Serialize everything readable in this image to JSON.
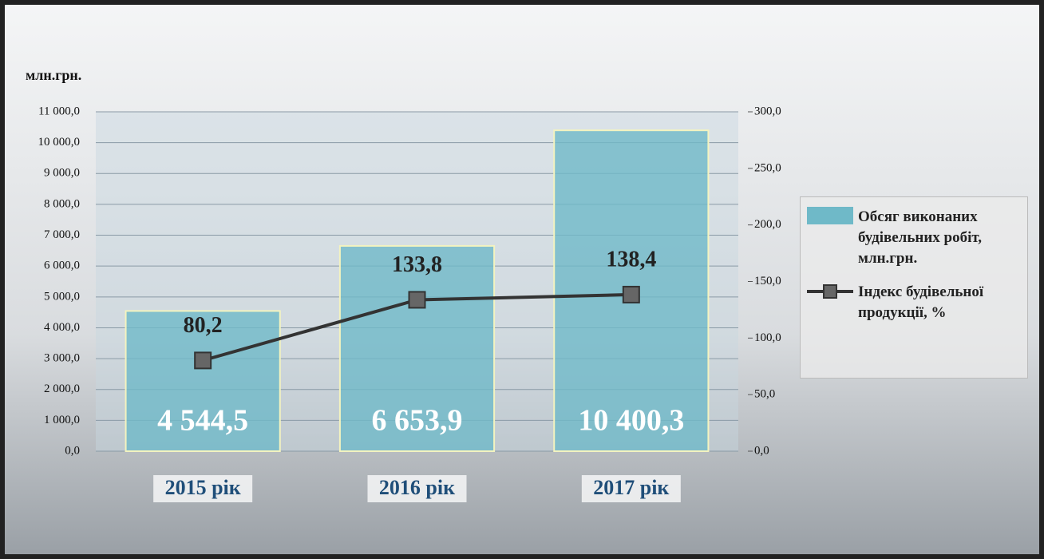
{
  "chart_data": {
    "type": "bar",
    "y_label": "млн.грн.",
    "categories": [
      "2015 рік",
      "2016 рік",
      "2017 рік"
    ],
    "series": [
      {
        "name": "Обсяг виконаних будівельних робіт, млн.грн.",
        "type": "bar",
        "color": "#6fb9c8",
        "values": [
          4544.5,
          6653.9,
          10400.3
        ],
        "value_labels": [
          "4 544,5",
          "6 653,9",
          "10 400,3"
        ]
      },
      {
        "name": "Індекс будівельної продукції, %",
        "type": "line",
        "axis": "y2",
        "color": "#333333",
        "values": [
          80.2,
          133.8,
          138.4
        ],
        "value_labels": [
          "80,2",
          "133,8",
          "138,4"
        ]
      }
    ],
    "ylim": [
      0,
      11000
    ],
    "yticks": [
      {
        "value": 0,
        "label": "0,0"
      },
      {
        "value": 1000,
        "label": "1 000,0"
      },
      {
        "value": 2000,
        "label": "2 000,0"
      },
      {
        "value": 3000,
        "label": "3 000,0"
      },
      {
        "value": 4000,
        "label": "4 000,0"
      },
      {
        "value": 5000,
        "label": "5 000,0"
      },
      {
        "value": 6000,
        "label": "6 000,0"
      },
      {
        "value": 7000,
        "label": "7 000,0"
      },
      {
        "value": 8000,
        "label": "8 000,0"
      },
      {
        "value": 9000,
        "label": "9 000,0"
      },
      {
        "value": 10000,
        "label": "10 000,0"
      },
      {
        "value": 11000,
        "label": "11 000,0"
      }
    ],
    "y2lim": [
      0,
      300
    ],
    "y2ticks": [
      {
        "value": 0,
        "label": "0,0"
      },
      {
        "value": 50,
        "label": "50,0"
      },
      {
        "value": 100,
        "label": "100,0"
      },
      {
        "value": 150,
        "label": "150,0"
      },
      {
        "value": 200,
        "label": "200,0"
      },
      {
        "value": 250,
        "label": "250,0"
      },
      {
        "value": 300,
        "label": "300,0"
      }
    ],
    "grid": true,
    "legend": "right"
  }
}
